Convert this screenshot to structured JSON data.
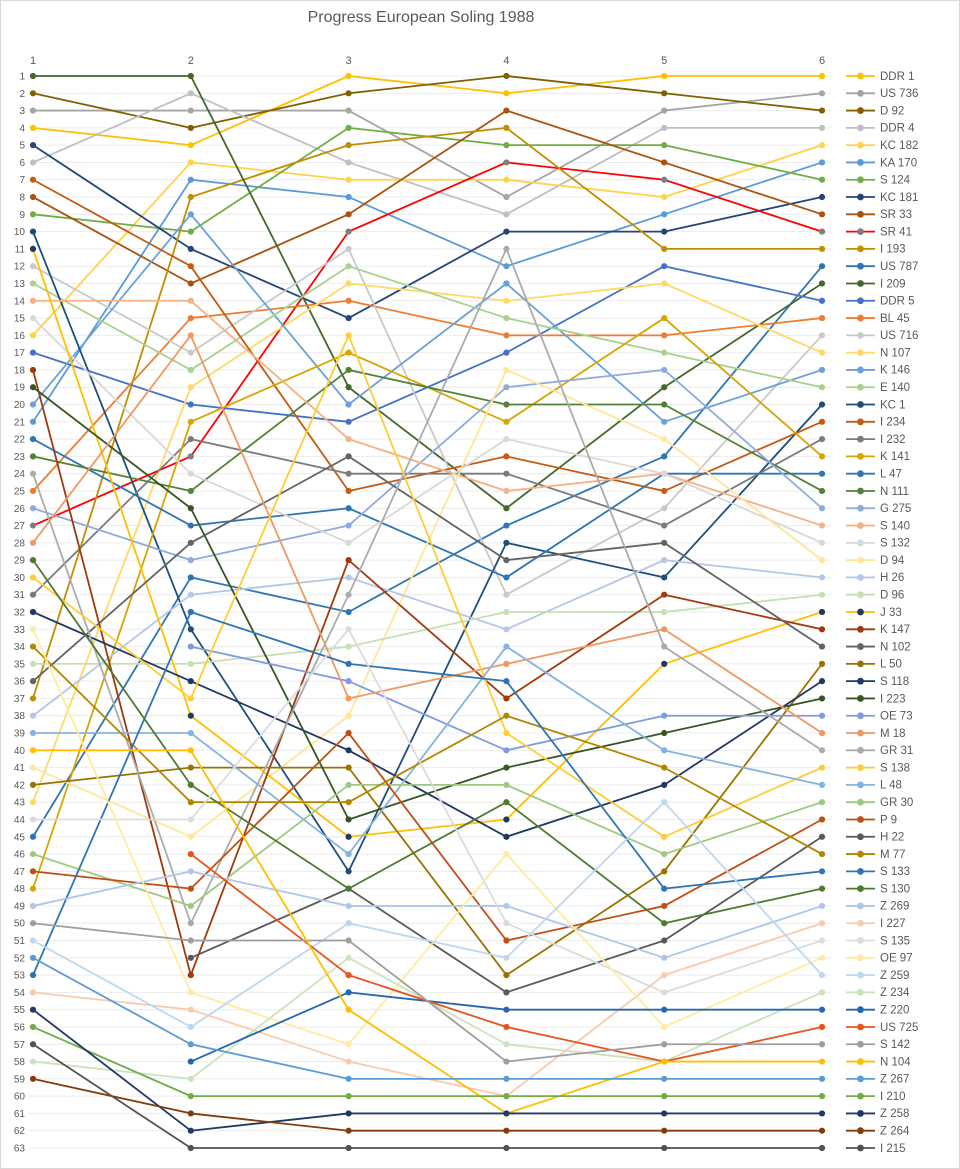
{
  "title": "Progress European Soling 1988",
  "chart_data": {
    "type": "line",
    "title": "Progress European Soling 1988",
    "x_labels": [
      "1",
      "2",
      "3",
      "4",
      "5",
      "6"
    ],
    "xlabel": "",
    "ylabel": "",
    "ylim": [
      1,
      63
    ],
    "y_tick_step": 1,
    "grid": true,
    "legend_position": "right",
    "note": "Bump chart of overall ranking (1=best) after each of 6 races; y axis inverted, rank 1 on top. Series listed in final-standing order.",
    "series": [
      {
        "name": "DDR 1",
        "color": "#FFC000",
        "ranks": [
          4,
          5,
          1,
          2,
          1,
          1
        ]
      },
      {
        "name": "US 736",
        "color": "#A5A5A5",
        "ranks": [
          3,
          3,
          3,
          8,
          3,
          2
        ]
      },
      {
        "name": "D 92",
        "color": "#806000",
        "ranks": [
          2,
          4,
          2,
          1,
          2,
          3
        ]
      },
      {
        "name": "DDR 4",
        "color": "#BFBFBF",
        "ranks": [
          6,
          2,
          6,
          9,
          4,
          4
        ]
      },
      {
        "name": "KC 182",
        "color": "#FFD24B",
        "ranks": [
          16,
          6,
          7,
          7,
          8,
          5
        ]
      },
      {
        "name": "KA 170",
        "color": "#5B9BD5",
        "ranks": [
          21,
          7,
          8,
          12,
          9,
          6
        ]
      },
      {
        "name": "S 124",
        "color": "#70AD47",
        "ranks": [
          9,
          10,
          4,
          5,
          5,
          7
        ]
      },
      {
        "name": "KC 181",
        "color": "#264478",
        "ranks": [
          5,
          11,
          15,
          10,
          10,
          8
        ]
      },
      {
        "name": "SR 33",
        "color": "#A85410",
        "ranks": [
          8,
          13,
          9,
          3,
          6,
          9
        ]
      },
      {
        "name": "SR 41",
        "color": "#FF0000",
        "marker": "#7F7F7F",
        "ranks": [
          27,
          23,
          10,
          6,
          7,
          10
        ]
      },
      {
        "name": "I 193",
        "color": "#BF8F00",
        "ranks": [
          37,
          8,
          5,
          4,
          11,
          11
        ]
      },
      {
        "name": "US 787",
        "color": "#2E75B6",
        "ranks": [
          45,
          30,
          32,
          27,
          23,
          12
        ]
      },
      {
        "name": "I 209",
        "color": "#43682B",
        "ranks": [
          1,
          1,
          19,
          26,
          19,
          13
        ]
      },
      {
        "name": "DDR 5",
        "color": "#4472C4",
        "ranks": [
          17,
          20,
          21,
          17,
          12,
          14
        ]
      },
      {
        "name": "BL 45",
        "color": "#ED7D31",
        "ranks": [
          25,
          15,
          14,
          16,
          16,
          15
        ]
      },
      {
        "name": "US 716",
        "color": "#C9C9C9",
        "ranks": [
          12,
          17,
          11,
          31,
          26,
          16
        ]
      },
      {
        "name": "N 107",
        "color": "#FFD966",
        "ranks": [
          43,
          19,
          13,
          14,
          13,
          17
        ]
      },
      {
        "name": "K 146",
        "color": "#69A1D8",
        "ranks": [
          20,
          9,
          20,
          13,
          21,
          18
        ]
      },
      {
        "name": "E 140",
        "color": "#A9D18E",
        "ranks": [
          13,
          18,
          12,
          15,
          17,
          19
        ]
      },
      {
        "name": "KC 1",
        "color": "#1F4E79",
        "ranks": [
          10,
          33,
          47,
          28,
          30,
          20
        ]
      },
      {
        "name": "I 234",
        "color": "#C55A11",
        "ranks": [
          7,
          12,
          25,
          23,
          25,
          21
        ]
      },
      {
        "name": "I 232",
        "color": "#7B7B7B",
        "ranks": [
          31,
          22,
          24,
          24,
          27,
          22
        ]
      },
      {
        "name": "K 141",
        "color": "#D6A500",
        "ranks": [
          48,
          21,
          17,
          21,
          15,
          23
        ]
      },
      {
        "name": "L 47",
        "color": "#2E75B6",
        "ranks": [
          22,
          27,
          26,
          30,
          24,
          24
        ]
      },
      {
        "name": "N 111",
        "color": "#538135",
        "ranks": [
          23,
          25,
          18,
          20,
          20,
          25
        ]
      },
      {
        "name": "G 275",
        "color": "#8FAADC",
        "ranks": [
          26,
          29,
          27,
          19,
          18,
          26
        ]
      },
      {
        "name": "S 140",
        "color": "#F4B183",
        "ranks": [
          14,
          14,
          22,
          25,
          24,
          27
        ]
      },
      {
        "name": "S 132",
        "color": "#D8D8D8",
        "ranks": [
          15,
          24,
          28,
          22,
          24,
          28
        ]
      },
      {
        "name": "D 94",
        "color": "#FFE699",
        "ranks": [
          41,
          45,
          38,
          18,
          22,
          29
        ]
      },
      {
        "name": "H 26",
        "color": "#B4C7E7",
        "ranks": [
          38,
          31,
          30,
          33,
          29,
          30
        ]
      },
      {
        "name": "D 96",
        "color": "#C5E0B4",
        "ranks": [
          35,
          35,
          34,
          32,
          32,
          31
        ]
      },
      {
        "name": "J 33",
        "color": "#FFC000",
        "marker": "#1F3864",
        "ranks": [
          11,
          38,
          45,
          44,
          35,
          32
        ]
      },
      {
        "name": "K 147",
        "color": "#A0390C",
        "ranks": [
          18,
          53,
          29,
          37,
          31,
          33
        ]
      },
      {
        "name": "N 102",
        "color": "#636363",
        "ranks": [
          36,
          28,
          23,
          29,
          28,
          34
        ]
      },
      {
        "name": "L 50",
        "color": "#997300",
        "ranks": [
          42,
          41,
          41,
          53,
          47,
          35
        ]
      },
      {
        "name": "S 118",
        "color": "#203864",
        "ranks": [
          32,
          36,
          40,
          45,
          42,
          36
        ]
      },
      {
        "name": "I 223",
        "color": "#375623",
        "ranks": [
          19,
          26,
          44,
          41,
          39,
          37
        ]
      },
      {
        "name": "OE 73",
        "color": "#7F9BE0",
        "ranks": [
          null,
          34,
          36,
          40,
          38,
          38
        ]
      },
      {
        "name": "M 18",
        "color": "#F19862",
        "ranks": [
          28,
          16,
          37,
          35,
          33,
          39
        ]
      },
      {
        "name": "GR 31",
        "color": "#ABABAB",
        "ranks": [
          24,
          50,
          31,
          11,
          34,
          40
        ]
      },
      {
        "name": "S 138",
        "color": "#FFCD33",
        "ranks": [
          30,
          37,
          16,
          39,
          45,
          41
        ]
      },
      {
        "name": "L 48",
        "color": "#85B3E1",
        "ranks": [
          39,
          39,
          46,
          34,
          40,
          42
        ]
      },
      {
        "name": "GR 30",
        "color": "#9DC97E",
        "ranks": [
          46,
          49,
          42,
          42,
          46,
          43
        ]
      },
      {
        "name": "P 9",
        "color": "#C04F15",
        "ranks": [
          47,
          48,
          39,
          51,
          49,
          44
        ]
      },
      {
        "name": "H 22",
        "color": "#595959",
        "ranks": [
          null,
          52,
          48,
          54,
          51,
          45
        ]
      },
      {
        "name": "M 77",
        "color": "#B38600",
        "ranks": [
          34,
          43,
          43,
          38,
          41,
          46
        ]
      },
      {
        "name": "S 133",
        "color": "#2E75B6",
        "ranks": [
          53,
          32,
          35,
          36,
          48,
          47
        ]
      },
      {
        "name": "S 130",
        "color": "#4E7B30",
        "ranks": [
          29,
          42,
          48,
          43,
          50,
          48
        ]
      },
      {
        "name": "Z 269",
        "color": "#B0C5EA",
        "ranks": [
          49,
          47,
          49,
          49,
          52,
          49
        ]
      },
      {
        "name": "I 227",
        "color": "#F8CBAD",
        "ranks": [
          54,
          55,
          58,
          60,
          53,
          50
        ]
      },
      {
        "name": "S 135",
        "color": "#DBDBDB",
        "ranks": [
          44,
          44,
          33,
          50,
          54,
          51
        ]
      },
      {
        "name": "OE 97",
        "color": "#FFEBA0",
        "ranks": [
          33,
          54,
          57,
          46,
          56,
          52
        ]
      },
      {
        "name": "Z 259",
        "color": "#BDD7EE",
        "ranks": [
          51,
          56,
          50,
          52,
          43,
          53
        ]
      },
      {
        "name": "Z 234",
        "color": "#CBE3BC",
        "ranks": [
          58,
          59,
          52,
          57,
          58,
          54
        ]
      },
      {
        "name": "Z 220",
        "color": "#2566AF",
        "ranks": [
          null,
          58,
          54,
          55,
          55,
          55
        ]
      },
      {
        "name": "US 725",
        "color": "#E8541D",
        "ranks": [
          null,
          46,
          53,
          56,
          58,
          56
        ]
      },
      {
        "name": "S 142",
        "color": "#9E9E9E",
        "ranks": [
          50,
          51,
          51,
          58,
          57,
          57
        ]
      },
      {
        "name": "N 104",
        "color": "#FFBF00",
        "ranks": [
          40,
          40,
          55,
          61,
          58,
          58
        ]
      },
      {
        "name": "Z 267",
        "color": "#5B9BD5",
        "ranks": [
          52,
          57,
          59,
          59,
          59,
          59
        ]
      },
      {
        "name": "I 210",
        "color": "#70AD47",
        "ranks": [
          56,
          60,
          60,
          60,
          60,
          60
        ]
      },
      {
        "name": "Z 258",
        "color": "#203864",
        "ranks": [
          55,
          62,
          61,
          61,
          61,
          61
        ]
      },
      {
        "name": "Z 264",
        "color": "#843C0B",
        "ranks": [
          59,
          61,
          62,
          62,
          62,
          62
        ]
      },
      {
        "name": "I 215",
        "color": "#525252",
        "ranks": [
          57,
          63,
          63,
          63,
          63,
          63
        ]
      }
    ]
  }
}
